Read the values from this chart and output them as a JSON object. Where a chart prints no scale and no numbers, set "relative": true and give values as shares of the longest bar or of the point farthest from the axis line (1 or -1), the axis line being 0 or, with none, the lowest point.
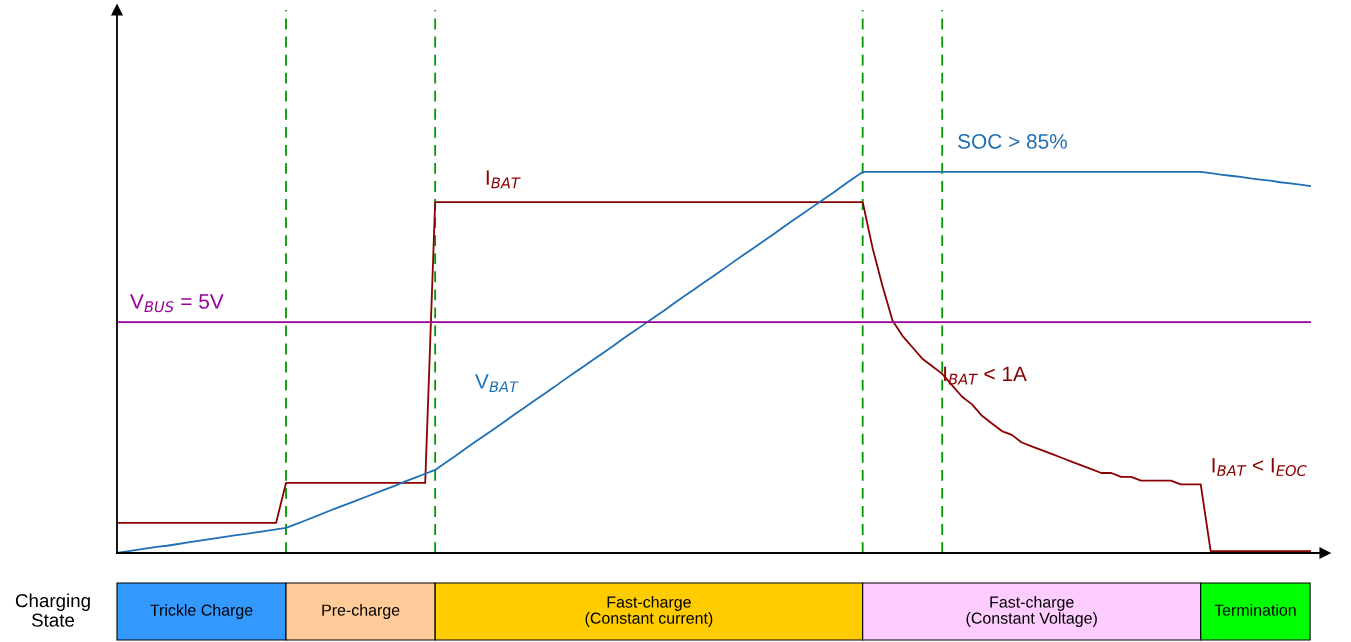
{
  "chart_data": {
    "type": "line",
    "relative": true,
    "grid": "x",
    "categories": [
      null,
      null,
      null,
      null,
      null,
      null,
      null,
      null,
      null,
      null,
      null,
      null,
      null,
      null,
      null,
      null,
      null,
      null,
      null,
      null,
      null,
      null,
      null,
      null,
      null,
      null,
      null,
      null,
      null,
      null,
      null,
      null,
      null,
      null,
      null,
      null,
      null,
      null,
      null,
      null,
      null,
      null,
      null,
      null,
      null,
      null,
      null,
      null,
      null,
      null,
      null,
      null,
      null,
      null,
      null,
      null,
      null,
      null,
      null,
      null,
      null,
      null,
      null,
      null,
      null,
      null,
      null,
      null,
      null,
      null,
      null,
      null,
      null,
      null,
      null,
      null,
      null,
      null,
      null,
      null,
      null,
      null,
      null,
      null,
      null,
      null,
      null,
      null,
      null,
      null,
      null,
      null,
      null,
      null,
      null,
      null,
      null,
      null,
      null,
      null,
      null,
      null,
      null,
      null,
      null,
      null,
      null,
      null,
      null,
      null,
      null,
      null,
      null,
      null,
      null,
      null,
      null,
      null,
      null,
      null,
      null
    ],
    "series": [
      {
        "name": "I$_{BAT}$",
        "color": "#8b0000",
        "values": [
          0.079,
          0.079,
          0.079,
          0.079,
          0.079,
          0.079,
          0.079,
          0.079,
          0.079,
          0.079,
          0.079,
          0.079,
          0.079,
          0.079,
          0.079,
          0.079,
          0.079,
          0.184,
          0.184,
          0.184,
          0.184,
          0.184,
          0.184,
          0.184,
          0.184,
          0.184,
          0.184,
          0.184,
          0.184,
          0.184,
          0.184,
          0.184,
          0.921,
          0.921,
          0.921,
          0.921,
          0.921,
          0.921,
          0.921,
          0.921,
          0.921,
          0.921,
          0.921,
          0.921,
          0.921,
          0.921,
          0.921,
          0.921,
          0.921,
          0.921,
          0.921,
          0.921,
          0.921,
          0.921,
          0.921,
          0.921,
          0.921,
          0.921,
          0.921,
          0.921,
          0.921,
          0.921,
          0.921,
          0.921,
          0.921,
          0.921,
          0.921,
          0.921,
          0.921,
          0.921,
          0.921,
          0.921,
          0.921,
          0.921,
          0.921,
          0.921,
          0.8,
          0.7,
          0.61,
          0.57,
          0.54,
          0.51,
          0.49,
          0.47,
          0.44,
          0.41,
          0.39,
          0.36,
          0.34,
          0.32,
          0.31,
          0.29,
          0.28,
          0.27,
          0.26,
          0.25,
          0.24,
          0.23,
          0.22,
          0.21,
          0.21,
          0.2,
          0.2,
          0.19,
          0.19,
          0.19,
          0.19,
          0.18,
          0.18,
          0.18,
          0.005,
          0.005,
          0.005,
          0.005,
          0.005,
          0.005,
          0.005,
          0.005,
          0.005,
          0.005,
          0.005
        ]
      },
      {
        "name": "V$_{BAT}$",
        "color": "#1f6fb4",
        "values": [
          0,
          0.004,
          0.008,
          0.012,
          0.016,
          0.019,
          0.023,
          0.027,
          0.031,
          0.035,
          0.039,
          0.043,
          0.047,
          0.05,
          0.054,
          0.058,
          0.062,
          0.066,
          0.076,
          0.086,
          0.096,
          0.107,
          0.117,
          0.127,
          0.137,
          0.147,
          0.157,
          0.167,
          0.177,
          0.188,
          0.198,
          0.208,
          0.218,
          0.236,
          0.254,
          0.273,
          0.291,
          0.309,
          0.327,
          0.345,
          0.364,
          0.382,
          0.4,
          0.418,
          0.436,
          0.455,
          0.473,
          0.491,
          0.509,
          0.527,
          0.545,
          0.564,
          0.582,
          0.6,
          0.618,
          0.636,
          0.655,
          0.673,
          0.691,
          0.709,
          0.727,
          0.745,
          0.764,
          0.782,
          0.8,
          0.818,
          0.836,
          0.855,
          0.873,
          0.891,
          0.909,
          0.927,
          0.945,
          0.964,
          0.982,
          1.0,
          1.0,
          1.0,
          1.0,
          1.0,
          1.0,
          1.0,
          1.0,
          1.0,
          1.0,
          1.0,
          1.0,
          1.0,
          1.0,
          1.0,
          1.0,
          1.0,
          1.0,
          1.0,
          1.0,
          1.0,
          1.0,
          1.0,
          1.0,
          1.0,
          1.0,
          1.0,
          1.0,
          1.0,
          1.0,
          1.0,
          1.0,
          1.0,
          1.0,
          1.0,
          0.997,
          0.993,
          0.99,
          0.987,
          0.983,
          0.98,
          0.977,
          0.973,
          0.97,
          0.967,
          0.963
        ]
      },
      {
        "name": "V$_{BUS}$ = 5V",
        "color": "#990099",
        "values": [
          0.606,
          0.606,
          0.606,
          0.606,
          0.606,
          0.606,
          0.606,
          0.606,
          0.606,
          0.606,
          0.606,
          0.606,
          0.606,
          0.606,
          0.606,
          0.606,
          0.606,
          0.606,
          0.606,
          0.606,
          0.606,
          0.606,
          0.606,
          0.606,
          0.606,
          0.606,
          0.606,
          0.606,
          0.606,
          0.606,
          0.606,
          0.606,
          0.606,
          0.606,
          0.606,
          0.606,
          0.606,
          0.606,
          0.606,
          0.606,
          0.606,
          0.606,
          0.606,
          0.606,
          0.606,
          0.606,
          0.606,
          0.606,
          0.606,
          0.606,
          0.606,
          0.606,
          0.606,
          0.606,
          0.606,
          0.606,
          0.606,
          0.606,
          0.606,
          0.606,
          0.606,
          0.606,
          0.606,
          0.606,
          0.606,
          0.606,
          0.606,
          0.606,
          0.606,
          0.606,
          0.606,
          0.606,
          0.606,
          0.606,
          0.606,
          0.606,
          0.606,
          0.606,
          0.606,
          0.606,
          0.606,
          0.606,
          0.606,
          0.606,
          0.606,
          0.606,
          0.606,
          0.606,
          0.606,
          0.606,
          0.606,
          0.606,
          0.606,
          0.606,
          0.606,
          0.606,
          0.606,
          0.606,
          0.606,
          0.606,
          0.606,
          0.606,
          0.606,
          0.606,
          0.606,
          0.606,
          0.606,
          0.606,
          0.606,
          0.606,
          0.606,
          0.606,
          0.606,
          0.606,
          0.606,
          0.606,
          0.606,
          0.606,
          0.606,
          0.606,
          0.606
        ]
      }
    ],
    "annotations": [
      "SOC > 85%",
      "I$_{BAT}$ < 1A",
      "I$_{BAT}$ < I$_{EOC}$",
      "Charging\nState",
      "Trickle Charge",
      "Pre-charge",
      "Fast-charge\n(Constant current)",
      "Fast-charge\n(Constant Voltage)",
      "Termination"
    ]
  }
}
